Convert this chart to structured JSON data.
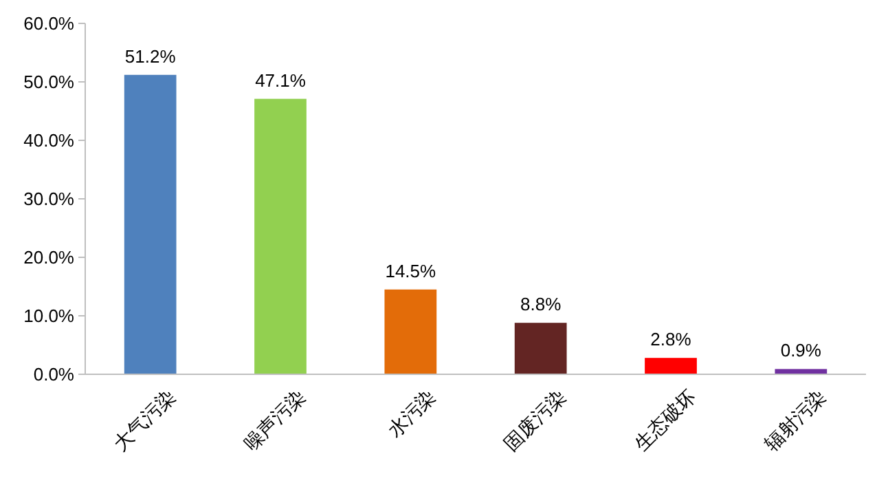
{
  "chart_data": {
    "type": "bar",
    "categories": [
      "大气污染",
      "噪声污染",
      "水污染",
      "固废污染",
      "生态破坏",
      "辐射污染"
    ],
    "values": [
      51.2,
      47.1,
      14.5,
      8.8,
      2.8,
      0.9
    ],
    "colors": [
      "#4f81bd",
      "#92d050",
      "#e36c09",
      "#632523",
      "#ff0000",
      "#7030a0"
    ],
    "value_labels": [
      "51.2%",
      "47.1%",
      "14.5%",
      "8.8%",
      "2.8%",
      "0.9%"
    ],
    "ylim": [
      0,
      60
    ],
    "yticks": [
      {
        "value": 0,
        "label": "0.0%"
      },
      {
        "value": 10,
        "label": "10.0%"
      },
      {
        "value": 20,
        "label": "20.0%"
      },
      {
        "value": 30,
        "label": "30.0%"
      },
      {
        "value": 40,
        "label": "40.0%"
      },
      {
        "value": 50,
        "label": "50.0%"
      },
      {
        "value": 60,
        "label": "60.0%"
      }
    ],
    "grid": false
  }
}
